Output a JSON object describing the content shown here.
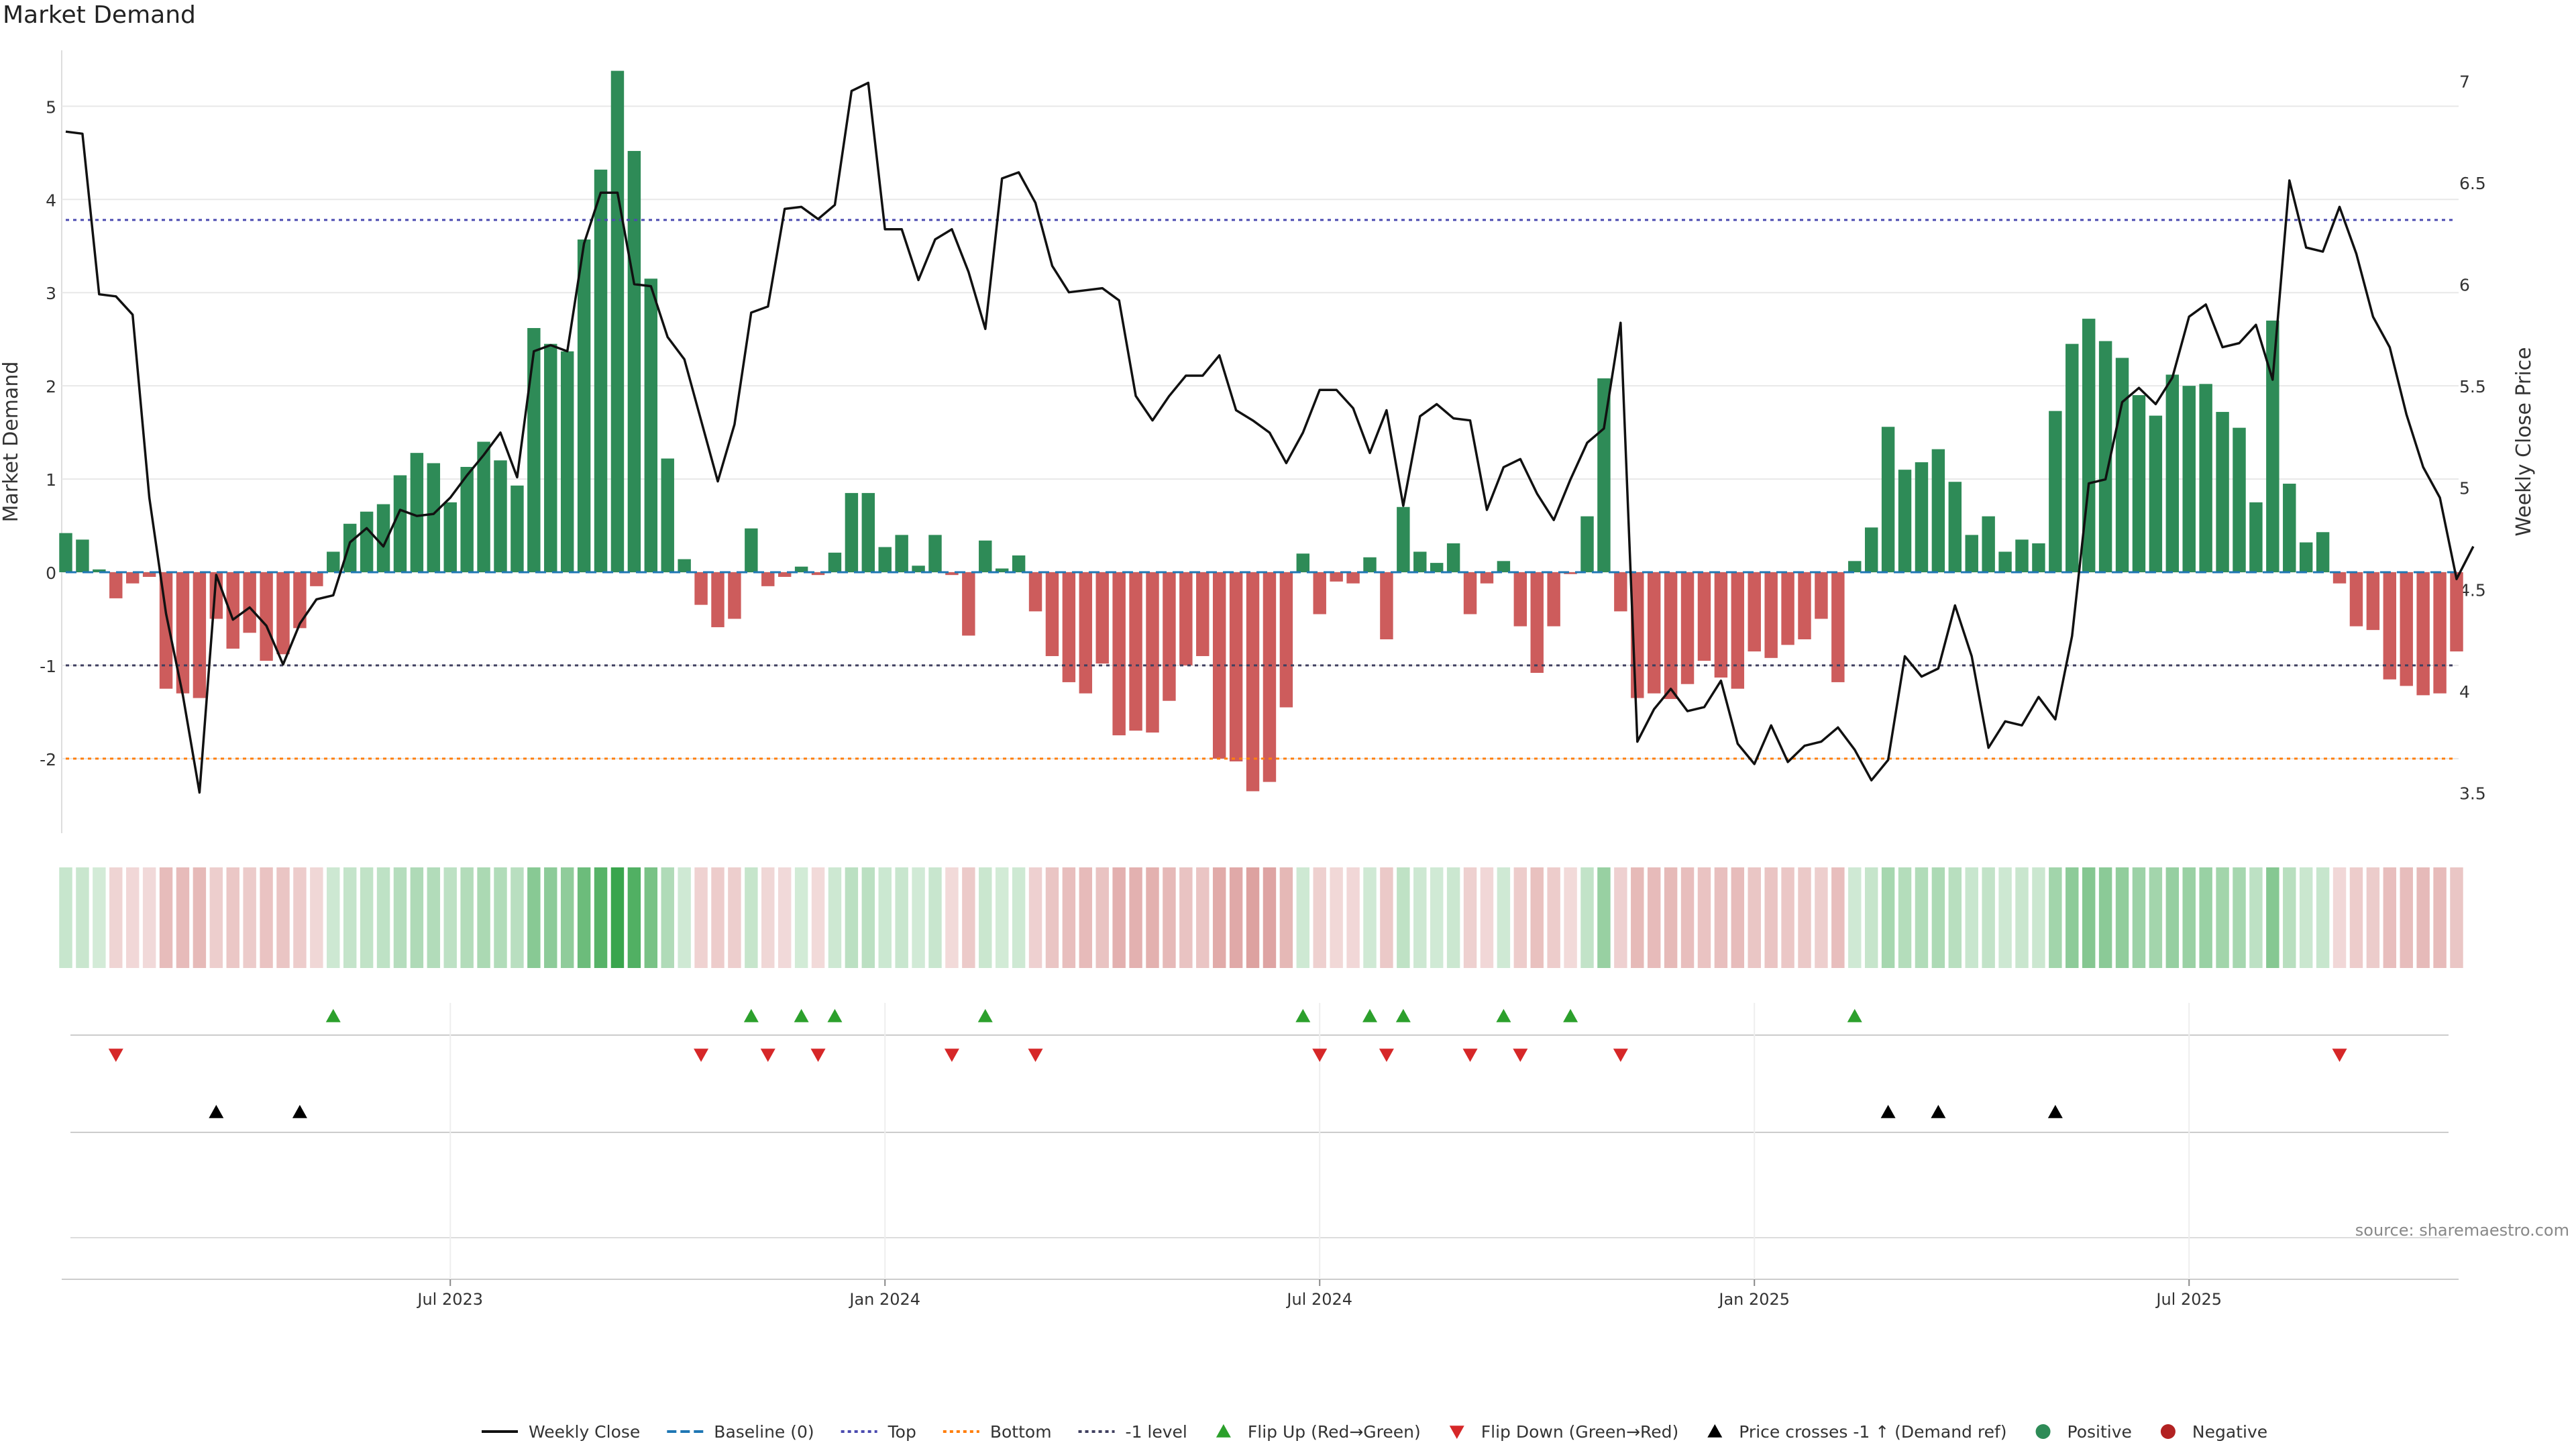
{
  "title": "Market Demand",
  "source": "source: sharemaestro.com",
  "colors": {
    "positive": "#2e8b57",
    "negative": "#cd5c5c",
    "price_line": "#111111",
    "baseline": "#1f77b4",
    "top": "#4b4bb0",
    "bottom": "#ff7f0e",
    "minus1": "#404060",
    "flip_up": "#2ca02c",
    "flip_down": "#d62728",
    "cross": "#000000",
    "grid": "#e8e8e8"
  },
  "chart_data": {
    "type": "bar",
    "title": "Market Demand",
    "ylabel": "Market Demand",
    "y2label": "Weekly Close Price",
    "ylim": [
      -2.8,
      5.6
    ],
    "y2lim": [
      3.3,
      7.15
    ],
    "yticks": [
      -2,
      -1,
      0,
      1,
      2,
      3,
      4,
      5
    ],
    "y2ticks": [
      3.5,
      4,
      4.5,
      5,
      5.5,
      6,
      6.5,
      7
    ],
    "xtick_labels": [
      "Jul 2023",
      "Jan 2024",
      "Jul 2024",
      "Jan 2025",
      "Jul 2025"
    ],
    "xtick_index": [
      23,
      49,
      75,
      101,
      127
    ],
    "levels": {
      "top": 3.78,
      "bottom": -2.0,
      "minus1": -1.0,
      "baseline": 0
    },
    "demand": [
      0.42,
      0.35,
      0.03,
      -0.28,
      -0.12,
      -0.05,
      -1.25,
      -1.3,
      -1.35,
      -0.5,
      -0.82,
      -0.65,
      -0.95,
      -0.88,
      -0.6,
      -0.15,
      0.22,
      0.52,
      0.65,
      0.73,
      1.04,
      1.28,
      1.17,
      0.75,
      1.13,
      1.4,
      1.2,
      0.93,
      2.62,
      2.45,
      2.37,
      3.57,
      4.32,
      5.38,
      4.52,
      3.15,
      1.22,
      0.14,
      -0.35,
      -0.59,
      -0.5,
      0.47,
      -0.15,
      -0.05,
      0.06,
      -0.03,
      0.21,
      0.85,
      0.85,
      0.27,
      0.4,
      0.07,
      0.4,
      -0.03,
      -0.68,
      0.34,
      0.04,
      0.18,
      -0.42,
      -0.9,
      -1.18,
      -1.3,
      -0.98,
      -1.75,
      -1.7,
      -1.72,
      -1.38,
      -1.0,
      -0.9,
      -2.0,
      -2.03,
      -2.35,
      -2.25,
      -1.45,
      0.2,
      -0.45,
      -0.1,
      -0.12,
      0.16,
      -0.72,
      0.7,
      0.22,
      0.1,
      0.31,
      -0.45,
      -0.12,
      0.12,
      -0.58,
      -1.08,
      -0.58,
      -0.02,
      0.6,
      2.08,
      -0.42,
      -1.35,
      -1.3,
      -1.36,
      -1.2,
      -0.95,
      -1.13,
      -1.25,
      -0.85,
      -0.92,
      -0.78,
      -0.72,
      -0.5,
      -1.18,
      0.12,
      0.48,
      1.56,
      1.1,
      1.18,
      1.32,
      0.97,
      0.4,
      0.6,
      0.22,
      0.35,
      0.31,
      1.73,
      2.45,
      2.72,
      2.48,
      2.3,
      1.9,
      1.68,
      2.12,
      2.0,
      2.02,
      1.72,
      1.55,
      0.75,
      2.7,
      0.95,
      0.32,
      0.43,
      -0.12,
      -0.58,
      -0.62,
      -1.15,
      -1.22,
      -1.32,
      -1.3,
      -0.85
    ],
    "price": [
      6.75,
      6.74,
      5.95,
      5.94,
      5.85,
      4.95,
      4.38,
      3.98,
      3.5,
      4.57,
      4.35,
      4.41,
      4.32,
      4.13,
      4.33,
      4.45,
      4.47,
      4.73,
      4.8,
      4.71,
      4.89,
      4.86,
      4.87,
      4.95,
      5.06,
      5.16,
      5.27,
      5.05,
      5.67,
      5.7,
      5.67,
      6.2,
      6.45,
      6.45,
      6.0,
      5.99,
      5.74,
      5.63,
      5.33,
      5.03,
      5.31,
      5.86,
      5.89,
      6.37,
      6.38,
      6.32,
      6.39,
      6.95,
      6.99,
      6.27,
      6.27,
      6.02,
      6.22,
      6.27,
      6.06,
      5.78,
      6.52,
      6.55,
      6.4,
      6.09,
      5.96,
      5.97,
      5.98,
      5.92,
      5.45,
      5.33,
      5.45,
      5.55,
      5.55,
      5.65,
      5.38,
      5.33,
      5.27,
      5.12,
      5.27,
      5.48,
      5.48,
      5.39,
      5.17,
      5.38,
      4.91,
      5.35,
      5.41,
      5.34,
      5.33,
      4.89,
      5.1,
      5.14,
      4.97,
      4.84,
      5.04,
      5.22,
      5.29,
      5.81,
      3.75,
      3.91,
      4.01,
      3.9,
      3.92,
      4.05,
      3.74,
      3.64,
      3.83,
      3.65,
      3.73,
      3.75,
      3.82,
      3.71,
      3.56,
      3.66,
      4.17,
      4.07,
      4.11,
      4.42,
      4.17,
      3.72,
      3.85,
      3.83,
      3.97,
      3.86,
      4.27,
      5.02,
      5.04,
      5.42,
      5.49,
      5.41,
      5.54,
      5.84,
      5.9,
      5.69,
      5.71,
      5.8,
      5.53,
      6.51,
      6.18,
      6.16,
      6.38,
      6.15,
      5.84,
      5.69,
      5.36,
      5.1,
      4.95,
      4.55,
      4.71
    ],
    "events": {
      "flip_up": [
        16,
        41,
        44,
        46,
        55,
        74,
        78,
        80,
        86,
        90,
        107
      ],
      "flip_down": [
        3,
        38,
        42,
        45,
        53,
        58,
        75,
        79,
        84,
        87,
        93,
        136
      ],
      "price_cross_up": [
        9,
        14,
        109,
        112,
        119
      ]
    },
    "legend": [
      {
        "label": "Weekly Close",
        "kind": "line-solid",
        "color": "#111111"
      },
      {
        "label": "Baseline (0)",
        "kind": "line-dash",
        "color": "#1f77b4"
      },
      {
        "label": "Top",
        "kind": "line-dot",
        "color": "#4b4bb0"
      },
      {
        "label": "Bottom",
        "kind": "line-dot",
        "color": "#ff7f0e"
      },
      {
        "label": "-1 level",
        "kind": "line-dot",
        "color": "#404060"
      },
      {
        "label": "Flip Up (Red→Green)",
        "kind": "tri-up",
        "color": "#2ca02c"
      },
      {
        "label": "Flip Down (Green→Red)",
        "kind": "tri-down",
        "color": "#d62728"
      },
      {
        "label": "Price crosses -1 ↑ (Demand ref)",
        "kind": "tri-up",
        "color": "#000000"
      },
      {
        "label": "Positive",
        "kind": "dot",
        "color": "#2e8b57"
      },
      {
        "label": "Negative",
        "kind": "dot",
        "color": "#b22222"
      }
    ]
  }
}
